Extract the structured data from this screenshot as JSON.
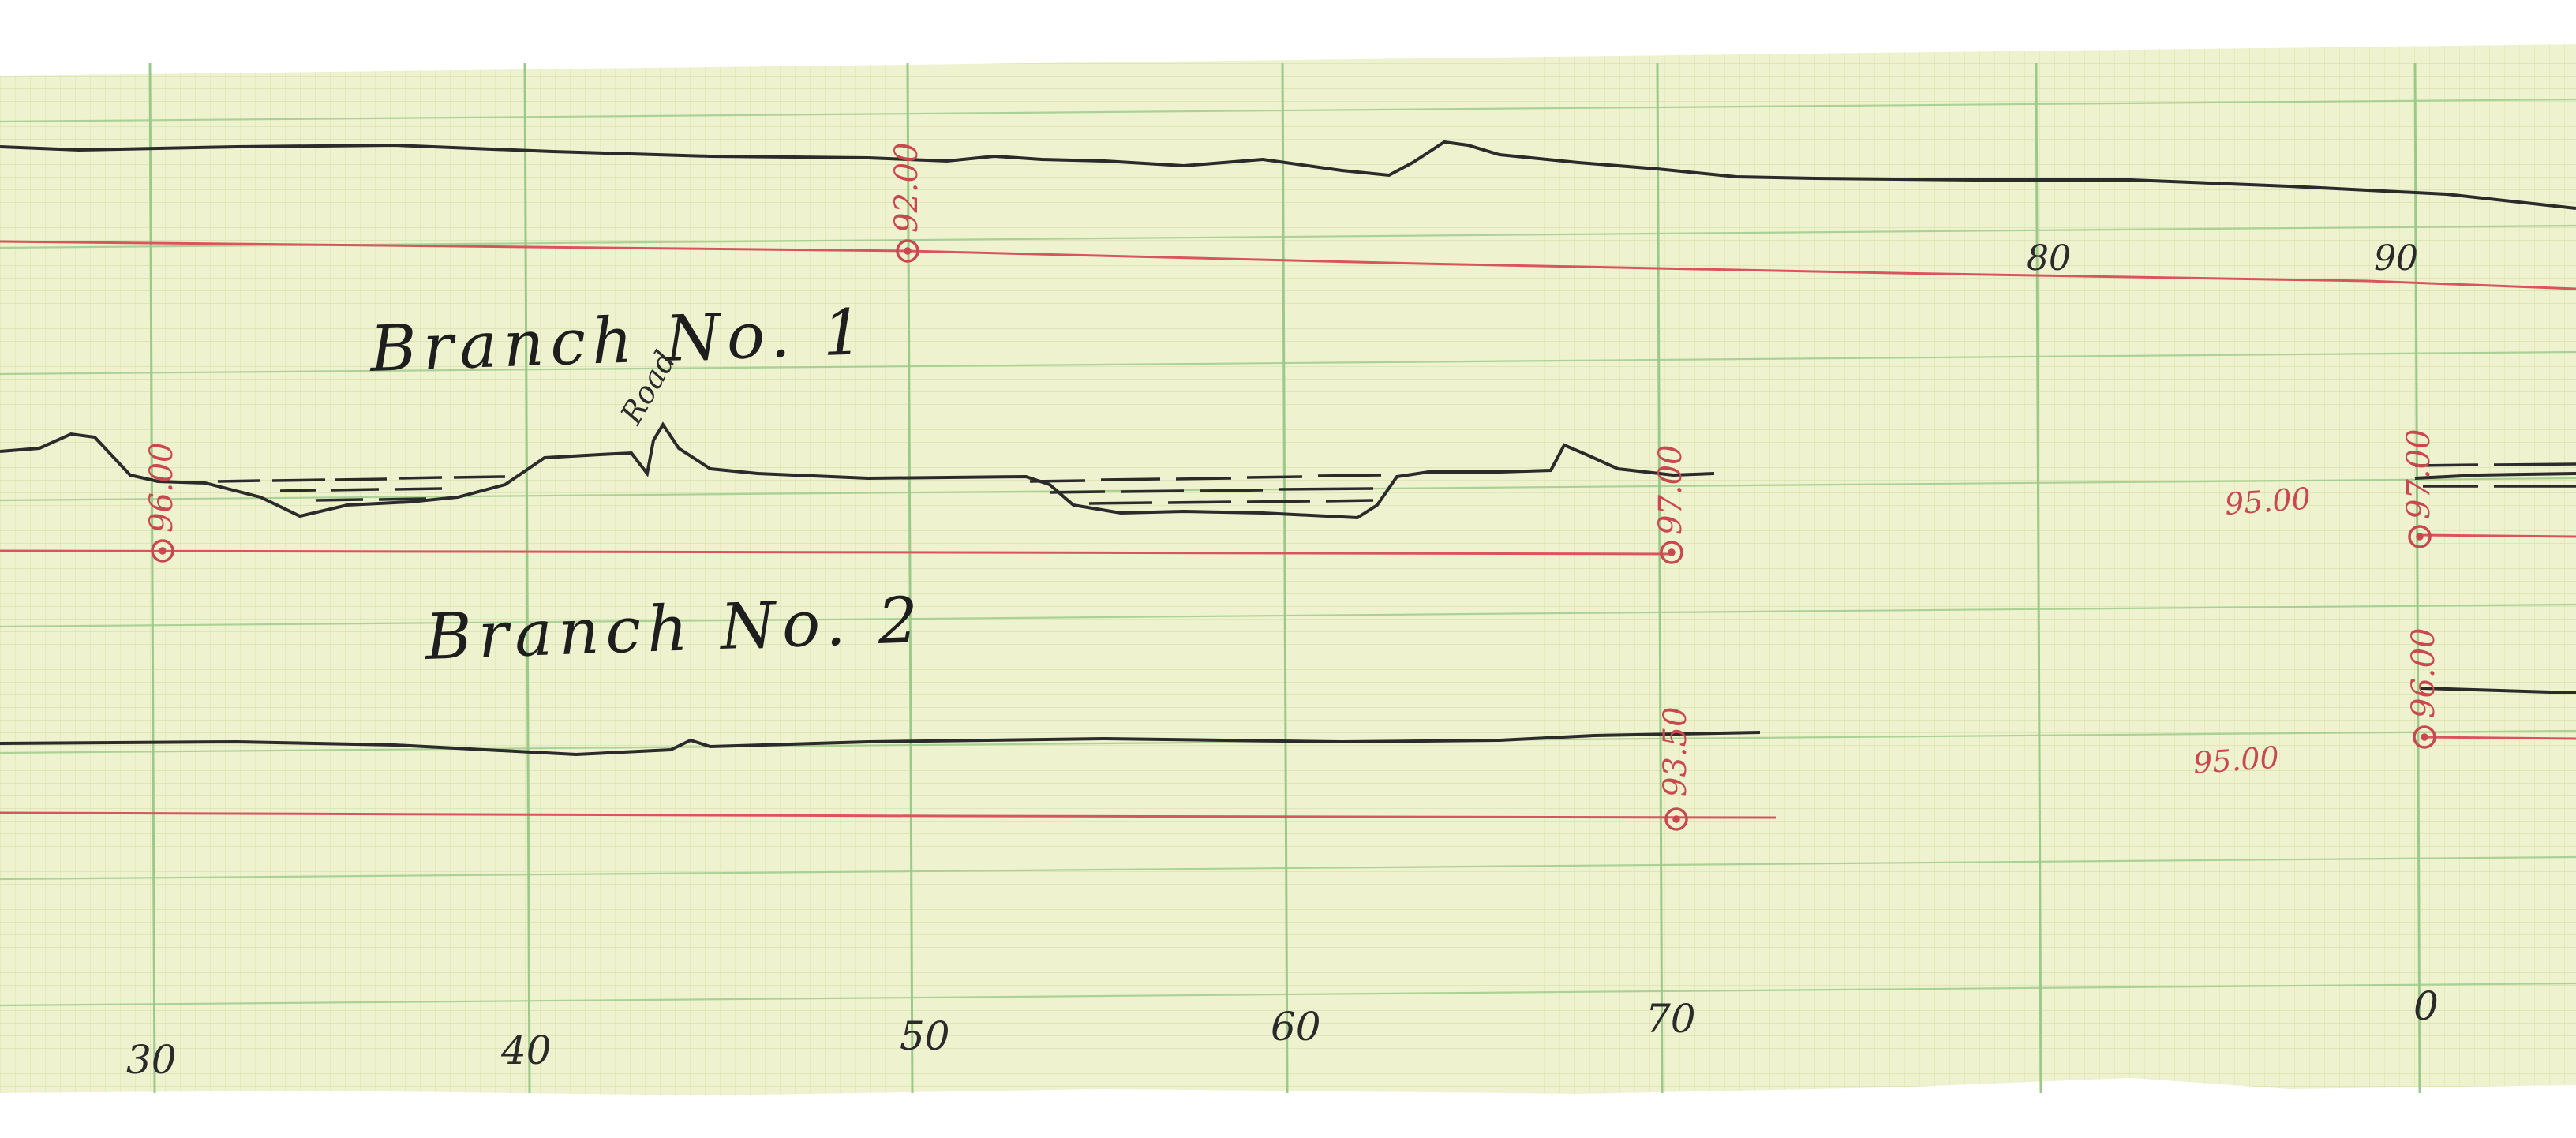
{
  "document": {
    "colors": {
      "paper": "#eef2cf",
      "minor_grid": "#d2dfa6",
      "major_grid": "#9cc989",
      "profile_ink": "#2b2b2b",
      "datum_red": "#d9555d",
      "label_red": "#c9484f"
    },
    "titles": {
      "branch1": "Branch No. 1",
      "branch2": "Branch No. 2"
    },
    "annotations": {
      "road": "Road"
    },
    "station_labels": {
      "bottom_30": "30",
      "bottom_40": "40",
      "bottom_50": "50",
      "bottom_60": "60",
      "bottom_70": "70",
      "bottom_0": "0",
      "top_80": "80",
      "top_90": "90"
    },
    "elevations": {
      "e92": "92.00",
      "e96_left": "96.00",
      "e97_mid": "97.00",
      "e93": "93.50",
      "e97_right": "97.00",
      "e96_right": "96.00",
      "e9500_upper": "95.00",
      "e9500_lower": "95.00"
    }
  }
}
